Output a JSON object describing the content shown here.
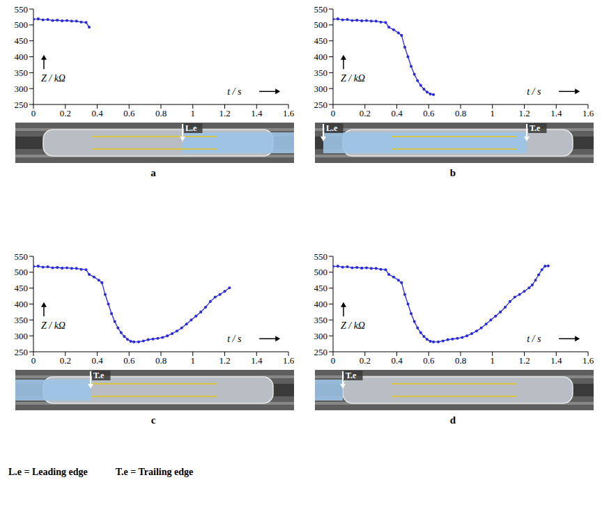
{
  "chart_data": [
    {
      "panel": "a",
      "type": "line",
      "x_label": "t / s",
      "y_label": "Z / kΩ",
      "color": "#2b2bd9",
      "marker": "dot",
      "xlim": [
        0,
        1.6
      ],
      "xticks": [
        0,
        0.2,
        0.4,
        0.6,
        0.8,
        1,
        1.2,
        1.4,
        1.6
      ],
      "ylim": [
        250,
        550
      ],
      "yticks": [
        250,
        300,
        350,
        400,
        450,
        500,
        550
      ],
      "x": [
        0,
        0.03,
        0.06,
        0.09,
        0.12,
        0.15,
        0.18,
        0.21,
        0.24,
        0.27,
        0.3,
        0.33,
        0.35
      ],
      "values": [
        518,
        519,
        516,
        517,
        514,
        515,
        513,
        514,
        512,
        512,
        509,
        508,
        493
      ],
      "photo_labels": [
        "L.e"
      ]
    },
    {
      "panel": "b",
      "type": "line",
      "x_label": "t / s",
      "y_label": "Z / kΩ",
      "color": "#2b2bd9",
      "marker": "dot",
      "xlim": [
        0,
        1.6
      ],
      "xticks": [
        0,
        0.2,
        0.4,
        0.6,
        0.8,
        1,
        1.2,
        1.4,
        1.6
      ],
      "ylim": [
        250,
        550
      ],
      "yticks": [
        250,
        300,
        350,
        400,
        450,
        500,
        550
      ],
      "x": [
        0,
        0.03,
        0.06,
        0.09,
        0.12,
        0.15,
        0.18,
        0.21,
        0.24,
        0.27,
        0.3,
        0.33,
        0.35,
        0.38,
        0.41,
        0.43,
        0.45,
        0.47,
        0.49,
        0.51,
        0.53,
        0.55,
        0.57,
        0.59,
        0.61,
        0.63
      ],
      "values": [
        518,
        519,
        516,
        517,
        514,
        515,
        513,
        514,
        512,
        512,
        509,
        508,
        493,
        485,
        475,
        467,
        430,
        400,
        370,
        345,
        325,
        310,
        298,
        289,
        283,
        281
      ],
      "photo_labels": [
        "L.e",
        "T.e"
      ]
    },
    {
      "panel": "c",
      "type": "line",
      "x_label": "t / s",
      "y_label": "Z / kΩ",
      "color": "#2b2bd9",
      "marker": "dot",
      "xlim": [
        0,
        1.6
      ],
      "xticks": [
        0,
        0.2,
        0.4,
        0.6,
        0.8,
        1,
        1.2,
        1.4,
        1.6
      ],
      "ylim": [
        250,
        550
      ],
      "yticks": [
        250,
        300,
        350,
        400,
        450,
        500,
        550
      ],
      "x": [
        0,
        0.03,
        0.06,
        0.09,
        0.12,
        0.15,
        0.18,
        0.21,
        0.24,
        0.27,
        0.3,
        0.33,
        0.35,
        0.38,
        0.41,
        0.43,
        0.45,
        0.47,
        0.49,
        0.51,
        0.53,
        0.55,
        0.57,
        0.59,
        0.61,
        0.63,
        0.66,
        0.69,
        0.72,
        0.75,
        0.78,
        0.81,
        0.84,
        0.87,
        0.9,
        0.93,
        0.96,
        0.99,
        1.02,
        1.05,
        1.08,
        1.11,
        1.14,
        1.17,
        1.2,
        1.23
      ],
      "values": [
        518,
        519,
        516,
        517,
        514,
        515,
        513,
        514,
        512,
        512,
        509,
        508,
        493,
        485,
        475,
        467,
        430,
        400,
        370,
        345,
        325,
        310,
        298,
        289,
        283,
        281,
        281,
        284,
        288,
        290,
        292,
        295,
        300,
        307,
        315,
        325,
        337,
        350,
        362,
        375,
        390,
        408,
        422,
        430,
        440,
        451
      ],
      "photo_labels": [
        "T.e"
      ]
    },
    {
      "panel": "d",
      "type": "line",
      "x_label": "t / s",
      "y_label": "Z / kΩ",
      "color": "#2b2bd9",
      "marker": "dot",
      "xlim": [
        0,
        1.6
      ],
      "xticks": [
        0,
        0.2,
        0.4,
        0.6,
        0.8,
        1,
        1.2,
        1.4,
        1.6
      ],
      "ylim": [
        250,
        550
      ],
      "yticks": [
        250,
        300,
        350,
        400,
        450,
        500,
        550
      ],
      "x": [
        0,
        0.03,
        0.06,
        0.09,
        0.12,
        0.15,
        0.18,
        0.21,
        0.24,
        0.27,
        0.3,
        0.33,
        0.35,
        0.38,
        0.41,
        0.43,
        0.45,
        0.47,
        0.49,
        0.51,
        0.53,
        0.55,
        0.57,
        0.59,
        0.61,
        0.63,
        0.66,
        0.69,
        0.72,
        0.75,
        0.78,
        0.81,
        0.84,
        0.87,
        0.9,
        0.93,
        0.96,
        0.99,
        1.02,
        1.05,
        1.08,
        1.11,
        1.14,
        1.17,
        1.2,
        1.23,
        1.25,
        1.27,
        1.29,
        1.31,
        1.33,
        1.35
      ],
      "values": [
        518,
        519,
        516,
        517,
        514,
        515,
        513,
        514,
        512,
        512,
        509,
        508,
        493,
        485,
        475,
        467,
        430,
        400,
        370,
        345,
        325,
        310,
        298,
        289,
        283,
        281,
        281,
        284,
        288,
        290,
        292,
        295,
        300,
        307,
        315,
        325,
        337,
        350,
        362,
        375,
        390,
        408,
        422,
        430,
        440,
        451,
        460,
        475,
        492,
        508,
        519,
        520
      ],
      "photo_labels": [
        "T.e"
      ]
    }
  ],
  "footnotes": [
    "L.e = Leading edge",
    "T.e = Trailing edge"
  ]
}
